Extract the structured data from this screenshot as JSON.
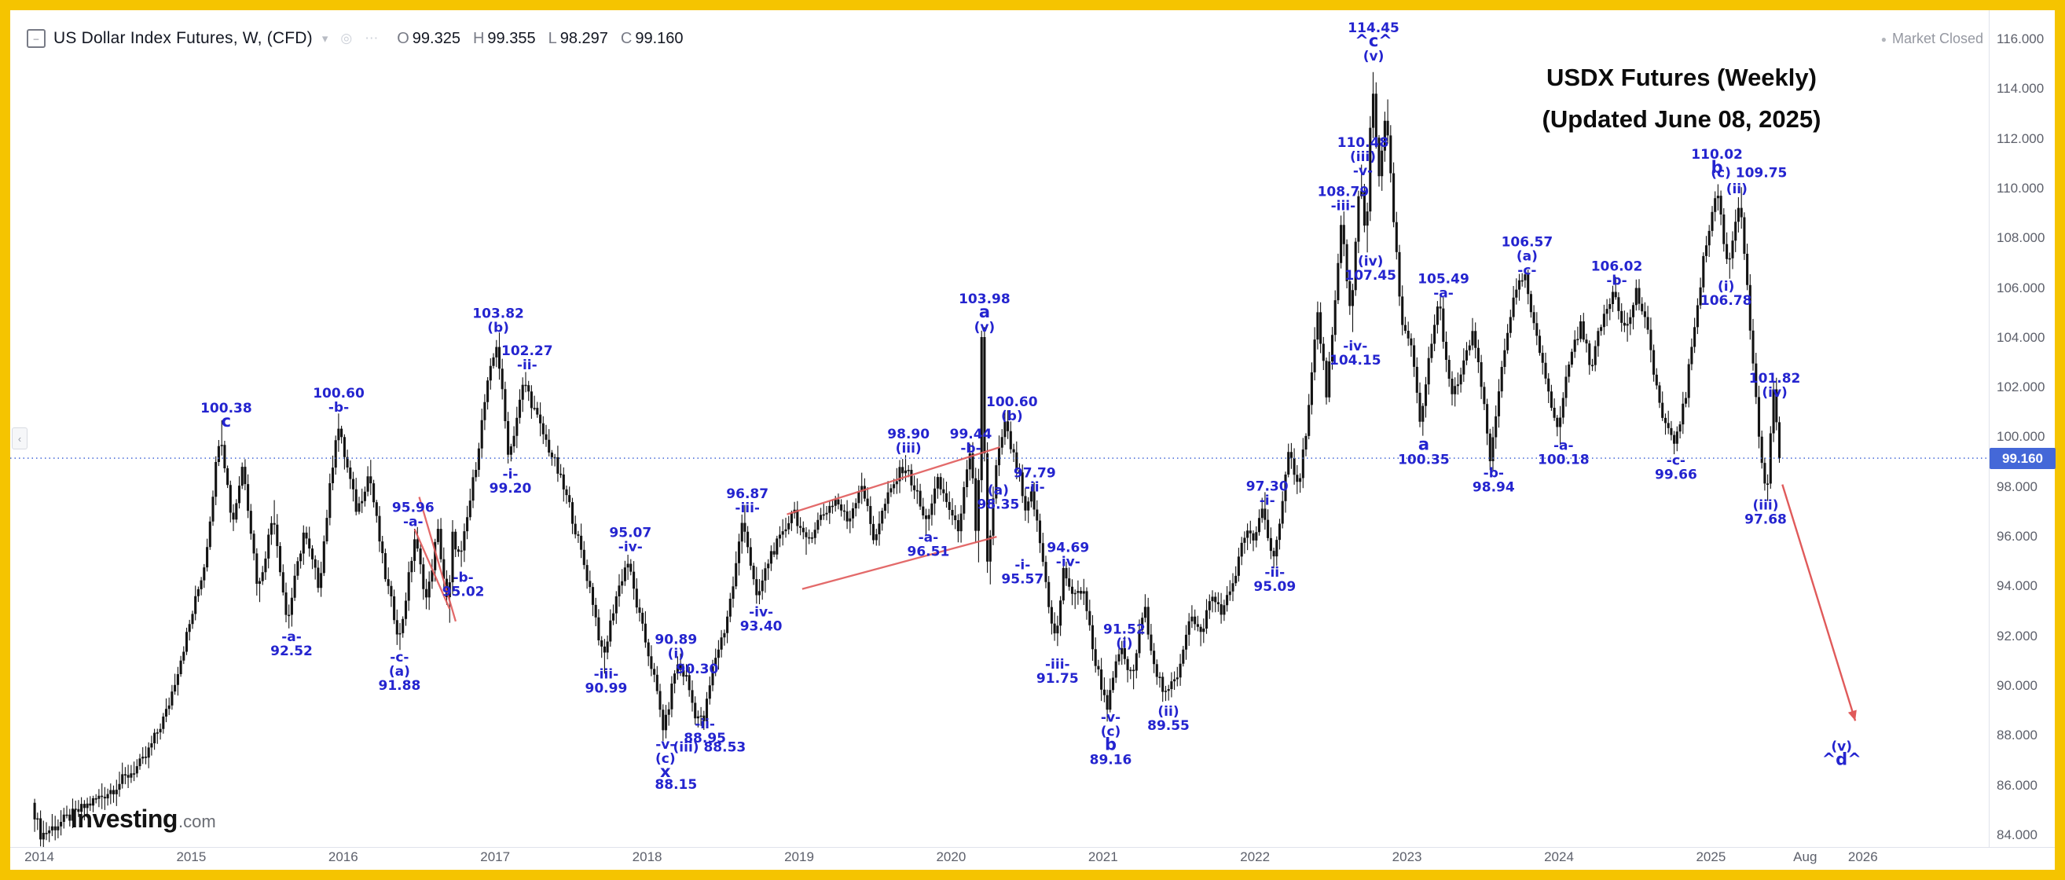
{
  "legend": {
    "symbol_title": "US Dollar Index Futures, W, (CFD)",
    "ohlc": [
      {
        "k": "O",
        "v": "99.325"
      },
      {
        "k": "H",
        "v": "99.355"
      },
      {
        "k": "L",
        "v": "98.297"
      },
      {
        "k": "C",
        "v": "99.160"
      }
    ]
  },
  "icons": {
    "collapse": "–",
    "caret": "▾",
    "eye": "◎",
    "more": "⋯",
    "panel_tab": "‹",
    "status_dot": "●"
  },
  "status": {
    "market": "Market Closed"
  },
  "watermark": {
    "line1": "USDX Futures (Weekly)",
    "line2": "(Updated June 08, 2025)"
  },
  "logo": {
    "brand": "Investing",
    "tld": ".com"
  },
  "chart_data": {
    "type": "candlestick",
    "title": "US Dollar Index Futures, Weekly, CFD",
    "last_price": 99.16,
    "price_line": {
      "value": 99.16,
      "label": "99.160",
      "color": "#4468d8"
    },
    "colors": {
      "candle": "#131313",
      "annotation": "#2424cf",
      "trend": "#e05a5a"
    },
    "y_axis": {
      "ticks": [
        116,
        114,
        112,
        110,
        108,
        106,
        104,
        102,
        100,
        98,
        96,
        94,
        92,
        90,
        88,
        86,
        84
      ],
      "format_decimals": 3
    },
    "x_axis": {
      "labels": [
        {
          "label": "2014",
          "t": 2014
        },
        {
          "label": "2015",
          "t": 2015
        },
        {
          "label": "2016",
          "t": 2016
        },
        {
          "label": "2017",
          "t": 2017
        },
        {
          "label": "2018",
          "t": 2018
        },
        {
          "label": "2019",
          "t": 2019
        },
        {
          "label": "2020",
          "t": 2020
        },
        {
          "label": "2021",
          "t": 2021
        },
        {
          "label": "2022",
          "t": 2022
        },
        {
          "label": "2023",
          "t": 2023
        },
        {
          "label": "2024",
          "t": 2024
        },
        {
          "label": "2025",
          "t": 2025
        },
        {
          "label": "Aug",
          "t": 2025.62
        },
        {
          "label": "2026",
          "t": 2026
        }
      ]
    },
    "anchors": [
      [
        2013.96,
        85.3
      ],
      [
        2014.02,
        84.0
      ],
      [
        2014.25,
        84.9
      ],
      [
        2014.5,
        85.9
      ],
      [
        2014.7,
        87.0
      ],
      [
        2014.85,
        89.0
      ],
      [
        2015.0,
        92.5
      ],
      [
        2015.1,
        95.0
      ],
      [
        2015.2,
        100.38
      ],
      [
        2015.28,
        96.5
      ],
      [
        2015.35,
        99.0
      ],
      [
        2015.45,
        93.8
      ],
      [
        2015.55,
        97.0
      ],
      [
        2015.64,
        92.52
      ],
      [
        2015.75,
        96.2
      ],
      [
        2015.85,
        94.0
      ],
      [
        2015.97,
        100.6
      ],
      [
        2016.1,
        97.0
      ],
      [
        2016.18,
        98.6
      ],
      [
        2016.28,
        94.6
      ],
      [
        2016.38,
        91.88
      ],
      [
        2016.48,
        95.96
      ],
      [
        2016.56,
        93.4
      ],
      [
        2016.63,
        96.3
      ],
      [
        2016.7,
        93.0
      ],
      [
        2016.73,
        96.1
      ],
      [
        2016.78,
        95.02
      ],
      [
        2016.88,
        98.8
      ],
      [
        2016.95,
        101.8
      ],
      [
        2017.02,
        103.82
      ],
      [
        2017.1,
        99.2
      ],
      [
        2017.2,
        102.27
      ],
      [
        2017.3,
        100.5
      ],
      [
        2017.4,
        99.0
      ],
      [
        2017.5,
        97.2
      ],
      [
        2017.57,
        95.5
      ],
      [
        2017.65,
        93.5
      ],
      [
        2017.72,
        90.99
      ],
      [
        2017.8,
        93.5
      ],
      [
        2017.88,
        95.07
      ],
      [
        2017.95,
        93.0
      ],
      [
        2018.05,
        90.5
      ],
      [
        2018.12,
        88.15
      ],
      [
        2018.2,
        90.89
      ],
      [
        2018.27,
        90.3
      ],
      [
        2018.32,
        88.95
      ],
      [
        2018.38,
        88.53
      ],
      [
        2018.45,
        91.0
      ],
      [
        2018.52,
        92.3
      ],
      [
        2018.58,
        94.2
      ],
      [
        2018.64,
        96.87
      ],
      [
        2018.73,
        93.4
      ],
      [
        2018.82,
        95.3
      ],
      [
        2018.9,
        96.0
      ],
      [
        2018.97,
        97.2
      ],
      [
        2019.05,
        95.7
      ],
      [
        2019.15,
        96.8
      ],
      [
        2019.25,
        97.5
      ],
      [
        2019.33,
        96.6
      ],
      [
        2019.42,
        98.2
      ],
      [
        2019.5,
        95.9
      ],
      [
        2019.58,
        97.4
      ],
      [
        2019.65,
        98.3
      ],
      [
        2019.7,
        98.9
      ],
      [
        2019.78,
        97.8
      ],
      [
        2019.84,
        96.51
      ],
      [
        2019.92,
        98.2
      ],
      [
        2019.99,
        97.3
      ],
      [
        2020.05,
        96.2
      ],
      [
        2020.1,
        98.0
      ],
      [
        2020.14,
        99.44
      ],
      [
        2020.18,
        95.2
      ],
      [
        2020.21,
        103.98
      ],
      [
        2020.25,
        94.53
      ],
      [
        2020.3,
        98.5
      ],
      [
        2020.36,
        100.6
      ],
      [
        2020.42,
        99.2
      ],
      [
        2020.46,
        98.35
      ],
      [
        2020.5,
        96.8
      ],
      [
        2020.54,
        97.79
      ],
      [
        2020.6,
        95.57
      ],
      [
        2020.66,
        93.0
      ],
      [
        2020.7,
        91.75
      ],
      [
        2020.75,
        94.69
      ],
      [
        2020.82,
        93.5
      ],
      [
        2020.88,
        94.0
      ],
      [
        2020.94,
        91.5
      ],
      [
        2021.0,
        90.0
      ],
      [
        2021.04,
        89.16
      ],
      [
        2021.12,
        91.52
      ],
      [
        2021.2,
        90.3
      ],
      [
        2021.28,
        93.2
      ],
      [
        2021.35,
        90.8
      ],
      [
        2021.42,
        89.55
      ],
      [
        2021.5,
        90.5
      ],
      [
        2021.58,
        92.9
      ],
      [
        2021.65,
        92.0
      ],
      [
        2021.72,
        93.6
      ],
      [
        2021.8,
        93.0
      ],
      [
        2021.88,
        94.5
      ],
      [
        2021.95,
        96.3
      ],
      [
        2022.0,
        95.7
      ],
      [
        2022.06,
        97.3
      ],
      [
        2022.12,
        95.09
      ],
      [
        2022.18,
        96.7
      ],
      [
        2022.23,
        99.3
      ],
      [
        2022.3,
        98.2
      ],
      [
        2022.36,
        101.0
      ],
      [
        2022.42,
        105.0
      ],
      [
        2022.48,
        101.8
      ],
      [
        2022.53,
        104.7
      ],
      [
        2022.58,
        108.79
      ],
      [
        2022.64,
        104.7
      ],
      [
        2022.7,
        110.48
      ],
      [
        2022.74,
        107.8
      ],
      [
        2022.78,
        114.45
      ],
      [
        2022.83,
        110.2
      ],
      [
        2022.87,
        113.2
      ],
      [
        2022.93,
        108.0
      ],
      [
        2022.98,
        104.5
      ],
      [
        2023.04,
        103.5
      ],
      [
        2023.1,
        100.35
      ],
      [
        2023.16,
        103.5
      ],
      [
        2023.22,
        105.49
      ],
      [
        2023.3,
        101.5
      ],
      [
        2023.38,
        102.8
      ],
      [
        2023.44,
        104.3
      ],
      [
        2023.5,
        102.0
      ],
      [
        2023.56,
        98.94
      ],
      [
        2023.64,
        103.2
      ],
      [
        2023.7,
        105.3
      ],
      [
        2023.78,
        106.57
      ],
      [
        2023.85,
        104.2
      ],
      [
        2023.92,
        102.6
      ],
      [
        2024.0,
        100.18
      ],
      [
        2024.08,
        103.2
      ],
      [
        2024.15,
        104.5
      ],
      [
        2024.22,
        102.9
      ],
      [
        2024.3,
        104.8
      ],
      [
        2024.37,
        106.02
      ],
      [
        2024.45,
        104.2
      ],
      [
        2024.52,
        105.9
      ],
      [
        2024.6,
        104.0
      ],
      [
        2024.68,
        101.0
      ],
      [
        2024.76,
        99.66
      ],
      [
        2024.84,
        101.5
      ],
      [
        2024.9,
        104.5
      ],
      [
        2024.97,
        107.5
      ],
      [
        2025.05,
        110.02
      ],
      [
        2025.12,
        106.78
      ],
      [
        2025.2,
        109.75
      ],
      [
        2025.27,
        104.2
      ],
      [
        2025.33,
        99.5
      ],
      [
        2025.38,
        97.68
      ],
      [
        2025.42,
        101.82
      ],
      [
        2025.46,
        99.16
      ]
    ],
    "annotations": [
      {
        "x": 2015.23,
        "y": 100.9,
        "lines": [
          "100.38",
          "c"
        ]
      },
      {
        "x": 2015.97,
        "y": 101.5,
        "lines": [
          "100.60",
          "-b-"
        ]
      },
      {
        "x": 2017.02,
        "y": 104.7,
        "lines": [
          "103.82",
          "(b)"
        ]
      },
      {
        "x": 2017.21,
        "y": 103.2,
        "lines": [
          "102.27",
          "-ii-"
        ]
      },
      {
        "x": 2017.1,
        "y": 98.25,
        "lines": [
          "-i-",
          "99.20"
        ]
      },
      {
        "x": 2016.46,
        "y": 96.9,
        "lines": [
          "95.96",
          "-a-"
        ]
      },
      {
        "x": 2016.79,
        "y": 94.1,
        "lines": [
          "-b-",
          "95.02"
        ]
      },
      {
        "x": 2015.66,
        "y": 91.7,
        "lines": [
          "-a-",
          "92.52"
        ]
      },
      {
        "x": 2016.37,
        "y": 90.6,
        "lines": [
          "-c-",
          "(a)",
          "91.88"
        ]
      },
      {
        "x": 2017.89,
        "y": 95.9,
        "lines": [
          "95.07",
          "-iv-"
        ]
      },
      {
        "x": 2017.73,
        "y": 90.2,
        "lines": [
          "-iii-",
          "90.99"
        ]
      },
      {
        "x": 2018.19,
        "y": 91.6,
        "lines": [
          "90.89",
          "(i)"
        ]
      },
      {
        "x": 2018.33,
        "y": 90.7,
        "lines": [
          "90.30"
        ]
      },
      {
        "x": 2018.38,
        "y": 88.2,
        "lines": [
          "-ii-",
          "88.95"
        ]
      },
      {
        "x": 2018.41,
        "y": 87.55,
        "lines": [
          "(iii) 88.53"
        ]
      },
      {
        "x": 2018.12,
        "y": 87.1,
        "lines": [
          "-v-",
          "(c)",
          "x"
        ]
      },
      {
        "x": 2018.19,
        "y": 86.05,
        "lines": [
          "88.15"
        ]
      },
      {
        "x": 2018.75,
        "y": 92.7,
        "lines": [
          "-iv-",
          "93.40"
        ]
      },
      {
        "x": 2018.66,
        "y": 97.45,
        "lines": [
          "96.87",
          "-iii-"
        ]
      },
      {
        "x": 2019.72,
        "y": 99.85,
        "lines": [
          "98.90",
          "(iii)"
        ]
      },
      {
        "x": 2019.85,
        "y": 95.7,
        "lines": [
          "-a-",
          "96.51"
        ]
      },
      {
        "x": 2020.22,
        "y": 105.0,
        "lines": [
          "103.98",
          "a",
          "(v)"
        ]
      },
      {
        "x": 2020.13,
        "y": 99.85,
        "lines": [
          "99.44",
          "-b-"
        ]
      },
      {
        "x": 2020.4,
        "y": 101.15,
        "lines": [
          "100.60",
          "(b)"
        ]
      },
      {
        "x": 2020.31,
        "y": 97.6,
        "lines": [
          "(a)",
          "98.35"
        ]
      },
      {
        "x": 2020.55,
        "y": 98.3,
        "lines": [
          "97.79",
          "-ii-"
        ]
      },
      {
        "x": 2020.47,
        "y": 94.6,
        "lines": [
          "-i-",
          "95.57"
        ]
      },
      {
        "x": 2020.77,
        "y": 95.3,
        "lines": [
          "94.69",
          "-iv-"
        ]
      },
      {
        "x": 2020.7,
        "y": 90.6,
        "lines": [
          "-iii-",
          "91.75"
        ]
      },
      {
        "x": 2021.14,
        "y": 92.0,
        "lines": [
          "91.52",
          "(i)"
        ]
      },
      {
        "x": 2021.05,
        "y": 87.9,
        "lines": [
          "-v-",
          "(c)",
          "b",
          "89.16"
        ]
      },
      {
        "x": 2021.43,
        "y": 88.7,
        "lines": [
          "(ii)",
          "89.55"
        ]
      },
      {
        "x": 2022.08,
        "y": 97.75,
        "lines": [
          "97.30",
          "-i-"
        ]
      },
      {
        "x": 2022.13,
        "y": 94.3,
        "lines": [
          "-ii-",
          "95.09"
        ]
      },
      {
        "x": 2022.58,
        "y": 109.6,
        "lines": [
          "108.79",
          "-iii-"
        ]
      },
      {
        "x": 2022.71,
        "y": 111.3,
        "lines": [
          "110.48",
          "(iii)",
          "-v-"
        ]
      },
      {
        "x": 2022.78,
        "y": 115.9,
        "lines": [
          "114.45",
          "^c^",
          "(v)"
        ]
      },
      {
        "x": 2022.76,
        "y": 106.8,
        "lines": [
          "(iv)",
          "107.45"
        ]
      },
      {
        "x": 2022.66,
        "y": 103.4,
        "lines": [
          "-iv-",
          "104.15"
        ]
      },
      {
        "x": 2023.11,
        "y": 99.4,
        "lines": [
          "a",
          "100.35"
        ]
      },
      {
        "x": 2023.24,
        "y": 106.1,
        "lines": [
          "105.49",
          "-a-"
        ]
      },
      {
        "x": 2023.57,
        "y": 98.3,
        "lines": [
          "-b-",
          "98.94"
        ]
      },
      {
        "x": 2023.79,
        "y": 107.3,
        "lines": [
          "106.57",
          "(a)",
          "-c-"
        ]
      },
      {
        "x": 2024.03,
        "y": 99.4,
        "lines": [
          "-a-",
          "100.18"
        ]
      },
      {
        "x": 2024.38,
        "y": 106.6,
        "lines": [
          "106.02",
          "-b-"
        ]
      },
      {
        "x": 2024.77,
        "y": 98.8,
        "lines": [
          "-c-",
          "99.66"
        ]
      },
      {
        "x": 2025.04,
        "y": 111.1,
        "lines": [
          "110.02",
          "b"
        ]
      },
      {
        "x": 2025.25,
        "y": 110.65,
        "lines": [
          "(c) 109.75"
        ]
      },
      {
        "x": 2025.17,
        "y": 110.0,
        "lines": [
          "(ii)"
        ]
      },
      {
        "x": 2025.1,
        "y": 105.8,
        "lines": [
          "(i)",
          "106.78"
        ]
      },
      {
        "x": 2025.42,
        "y": 102.1,
        "lines": [
          "101.82",
          "(iv)"
        ]
      },
      {
        "x": 2025.36,
        "y": 97.0,
        "lines": [
          "(iii)",
          "97.68"
        ]
      },
      {
        "x": 2025.86,
        "y": 87.3,
        "lines": [
          "(v)",
          "^d^"
        ]
      }
    ],
    "trendlines": [
      {
        "x1": 2016.5,
        "y1": 97.6,
        "x2": 2016.74,
        "y2": 92.6
      },
      {
        "x1": 2016.47,
        "y1": 96.3,
        "x2": 2016.7,
        "y2": 93.1
      },
      {
        "x1": 2018.92,
        "y1": 96.9,
        "x2": 2020.32,
        "y2": 99.6
      },
      {
        "x1": 2019.02,
        "y1": 93.9,
        "x2": 2020.3,
        "y2": 96.0
      }
    ],
    "arrow": {
      "x1": 2025.47,
      "y1": 98.1,
      "x2": 2025.95,
      "y2": 88.6
    }
  }
}
